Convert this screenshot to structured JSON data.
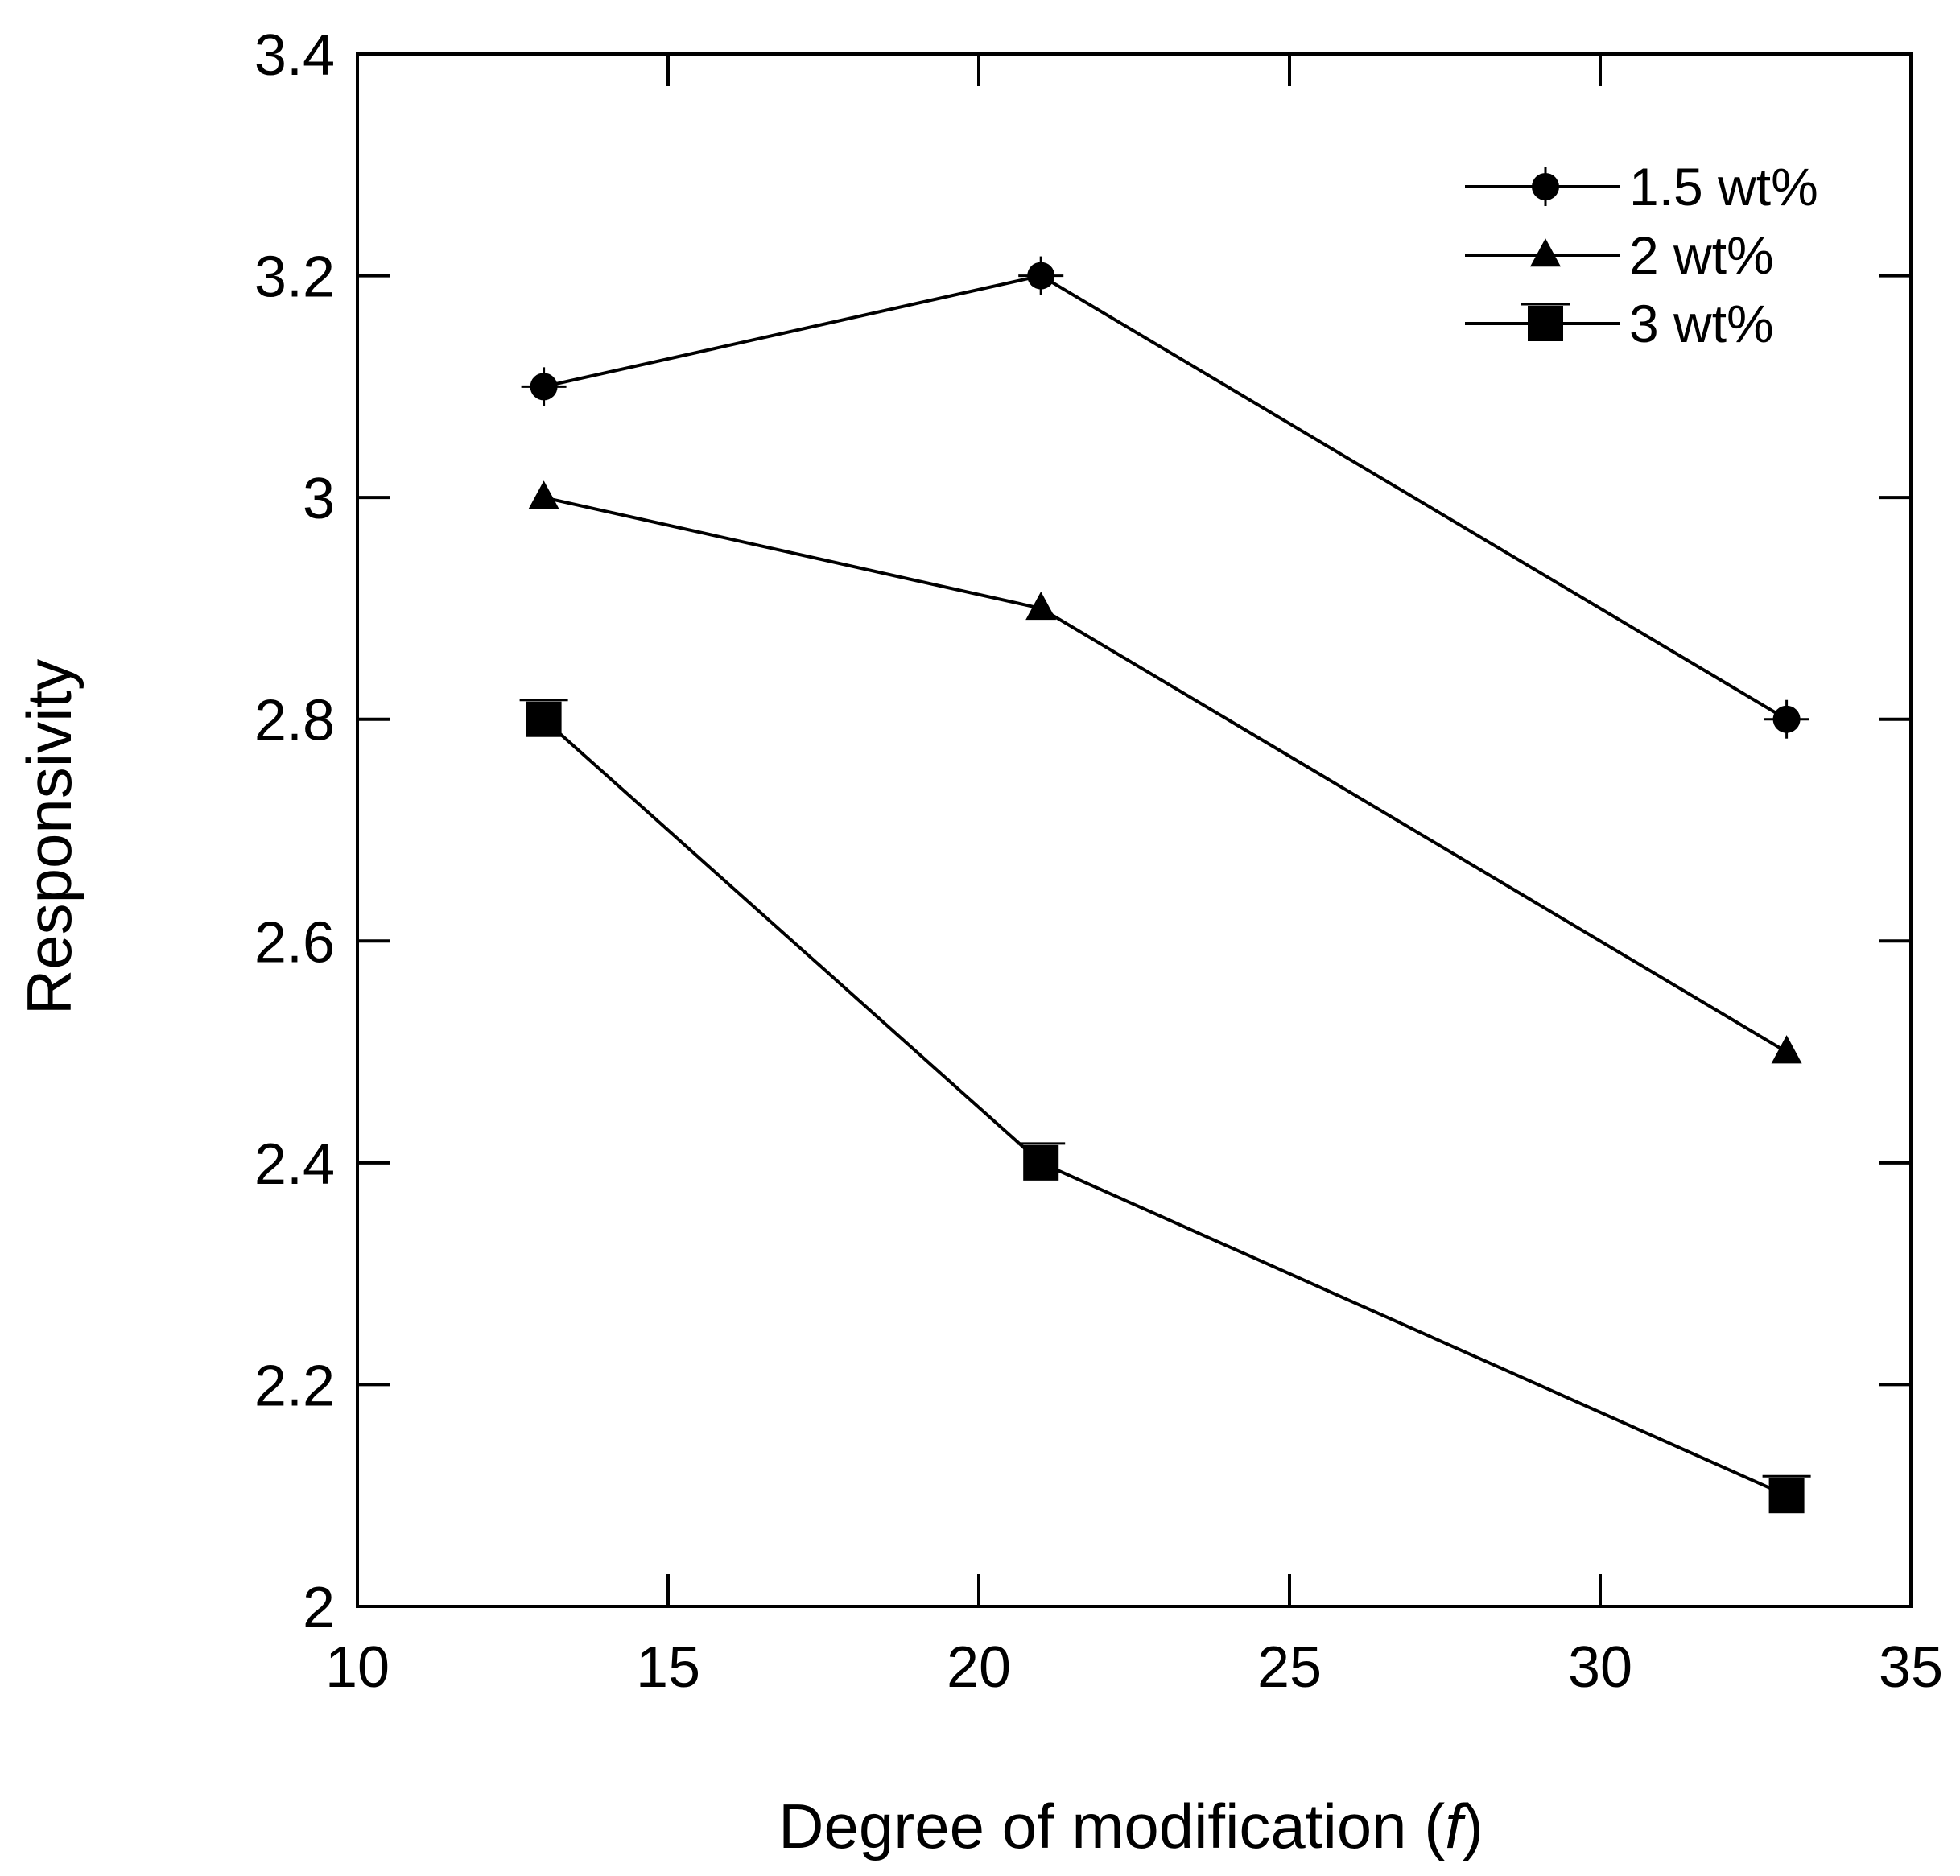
{
  "chart_data": {
    "type": "line",
    "title": "",
    "xlabel": "Degree of modification (",
    "xlabel_italic": "f",
    "xlabel_close": ")",
    "ylabel": "Responsivity",
    "xlim": [
      10,
      35
    ],
    "ylim": [
      2,
      3.4
    ],
    "xticks": [
      10,
      15,
      20,
      25,
      30,
      35
    ],
    "xtick_labels": [
      "10",
      "15",
      "20",
      "25",
      "30",
      "35"
    ],
    "yticks": [
      2,
      2.2,
      2.4,
      2.6,
      2.8,
      3,
      3.2,
      3.4
    ],
    "ytick_labels": [
      "2",
      "2.2",
      "2.4",
      "2.6",
      "2.8",
      "3",
      "3.2",
      "3.4"
    ],
    "grid": false,
    "legend_position": "top-right",
    "x": [
      13,
      21,
      33
    ],
    "series": [
      {
        "name": "1.5 wt%",
        "marker": "circle",
        "values": [
          3.1,
          3.2,
          2.8
        ]
      },
      {
        "name": "2 wt%",
        "marker": "triangle",
        "values": [
          3.0,
          2.9,
          2.5
        ]
      },
      {
        "name": "3 wt%",
        "marker": "square",
        "values": [
          2.8,
          2.4,
          2.1
        ]
      }
    ],
    "colors": {
      "line": "#000000",
      "marker": "#000000",
      "background": "#ffffff"
    }
  }
}
